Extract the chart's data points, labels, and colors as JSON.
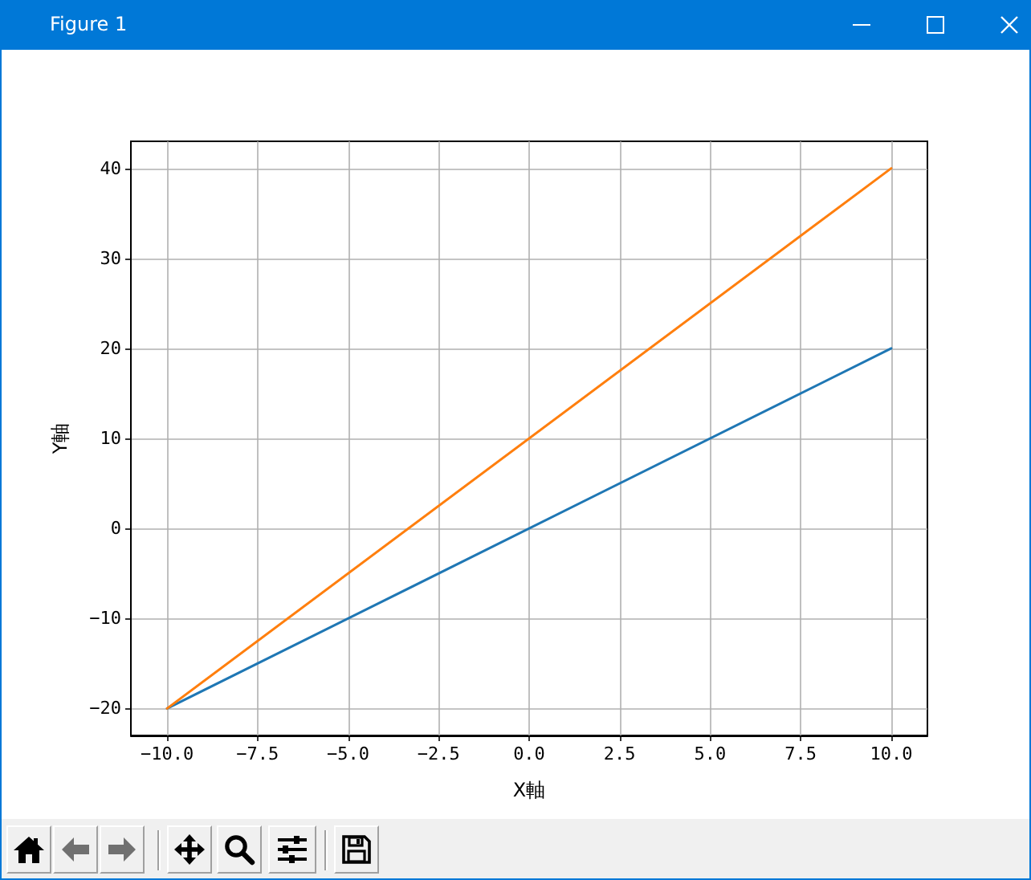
{
  "chart_data": {
    "type": "line",
    "xlabel": "X軸",
    "ylabel": "Y軸",
    "annotations": [
      "Figure 1"
    ],
    "x": [
      -10,
      10
    ],
    "series": [
      {
        "color": "#1f77b4",
        "values": [
          -20,
          20
        ]
      },
      {
        "color": "#ff7f0e",
        "values": [
          -20,
          40
        ]
      }
    ],
    "xlim": [
      -11,
      11
    ],
    "ylim": [
      -23,
      43
    ],
    "xticks": [
      {
        "value": -10,
        "label": "−10.0"
      },
      {
        "value": -7.5,
        "label": "−7.5"
      },
      {
        "value": -5,
        "label": "−5.0"
      },
      {
        "value": -2.5,
        "label": "−2.5"
      },
      {
        "value": 0,
        "label": "0.0"
      },
      {
        "value": 2.5,
        "label": "2.5"
      },
      {
        "value": 5,
        "label": "5.0"
      },
      {
        "value": 7.5,
        "label": "7.5"
      },
      {
        "value": 10,
        "label": "10.0"
      }
    ],
    "yticks": [
      {
        "value": -20,
        "label": "−20"
      },
      {
        "value": -10,
        "label": "−10"
      },
      0,
      10,
      20,
      30,
      40
    ],
    "grid": true
  }
}
